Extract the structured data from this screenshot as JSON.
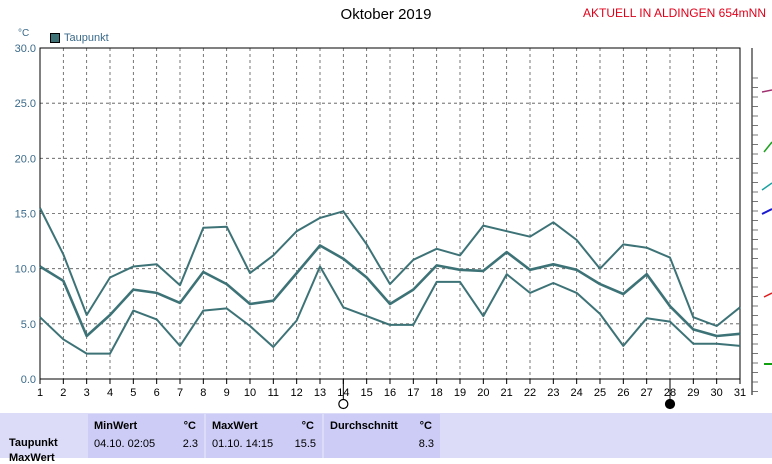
{
  "header": {
    "title": "Oktober 2019",
    "station": "AKTUELL IN ALDINGEN 654mNN",
    "unit": "°C"
  },
  "legend": {
    "label": "Taupunkt",
    "color": "#3d7377"
  },
  "chart_data": {
    "type": "line",
    "x": [
      1,
      2,
      3,
      4,
      5,
      6,
      7,
      8,
      9,
      10,
      11,
      12,
      13,
      14,
      15,
      16,
      17,
      18,
      19,
      20,
      21,
      22,
      23,
      24,
      25,
      26,
      27,
      28,
      29,
      30,
      31
    ],
    "xlim": [
      1,
      31
    ],
    "ylim": [
      0,
      30
    ],
    "yticks": [
      "0.0",
      "5.0",
      "10.0",
      "15.0",
      "20.0",
      "25.0",
      "30.0"
    ],
    "grid": true,
    "legend_position": "top-left",
    "series": [
      {
        "role": "max",
        "values": [
          15.5,
          11.3,
          5.8,
          9.2,
          10.2,
          10.4,
          8.5,
          13.7,
          13.8,
          9.6,
          11.2,
          13.4,
          14.6,
          15.2,
          12.2,
          8.6,
          10.8,
          11.8,
          11.2,
          13.9,
          13.4,
          12.9,
          14.2,
          12.6,
          10.0,
          12.2,
          11.9,
          11.0,
          5.6,
          4.8,
          6.5
        ]
      },
      {
        "role": "mean",
        "values": [
          10.2,
          8.9,
          3.9,
          5.8,
          8.1,
          7.8,
          6.9,
          9.7,
          8.6,
          6.8,
          7.1,
          9.6,
          12.1,
          10.9,
          9.2,
          6.8,
          8.1,
          10.3,
          9.9,
          9.8,
          11.5,
          9.9,
          10.4,
          9.9,
          8.6,
          7.7,
          9.5,
          6.6,
          4.5,
          3.9,
          4.1
        ]
      },
      {
        "role": "min",
        "values": [
          5.6,
          3.6,
          2.3,
          2.3,
          6.2,
          5.4,
          3.0,
          6.2,
          6.4,
          4.8,
          2.9,
          5.3,
          10.2,
          6.5,
          5.7,
          4.9,
          4.9,
          8.8,
          8.8,
          5.7,
          9.5,
          7.8,
          8.7,
          7.8,
          5.9,
          3.0,
          5.5,
          5.2,
          3.2,
          3.2,
          3.0
        ]
      }
    ],
    "markers": [
      {
        "day": 14,
        "symbol": "open-circle"
      },
      {
        "day": 28,
        "symbol": "filled-circle"
      }
    ]
  },
  "stats": {
    "row_label": "Taupunkt",
    "row_label_2": "MaxWert",
    "min": {
      "header": "MinWert",
      "unit": "°C",
      "datetime": "04.10.  02:05",
      "value": "2.3"
    },
    "max": {
      "header": "MaxWert",
      "unit": "°C",
      "datetime": "01.10.  14:15",
      "value": "15.5"
    },
    "avg": {
      "header": "Durchschnitt",
      "unit": "°C",
      "value": "8.3"
    }
  }
}
